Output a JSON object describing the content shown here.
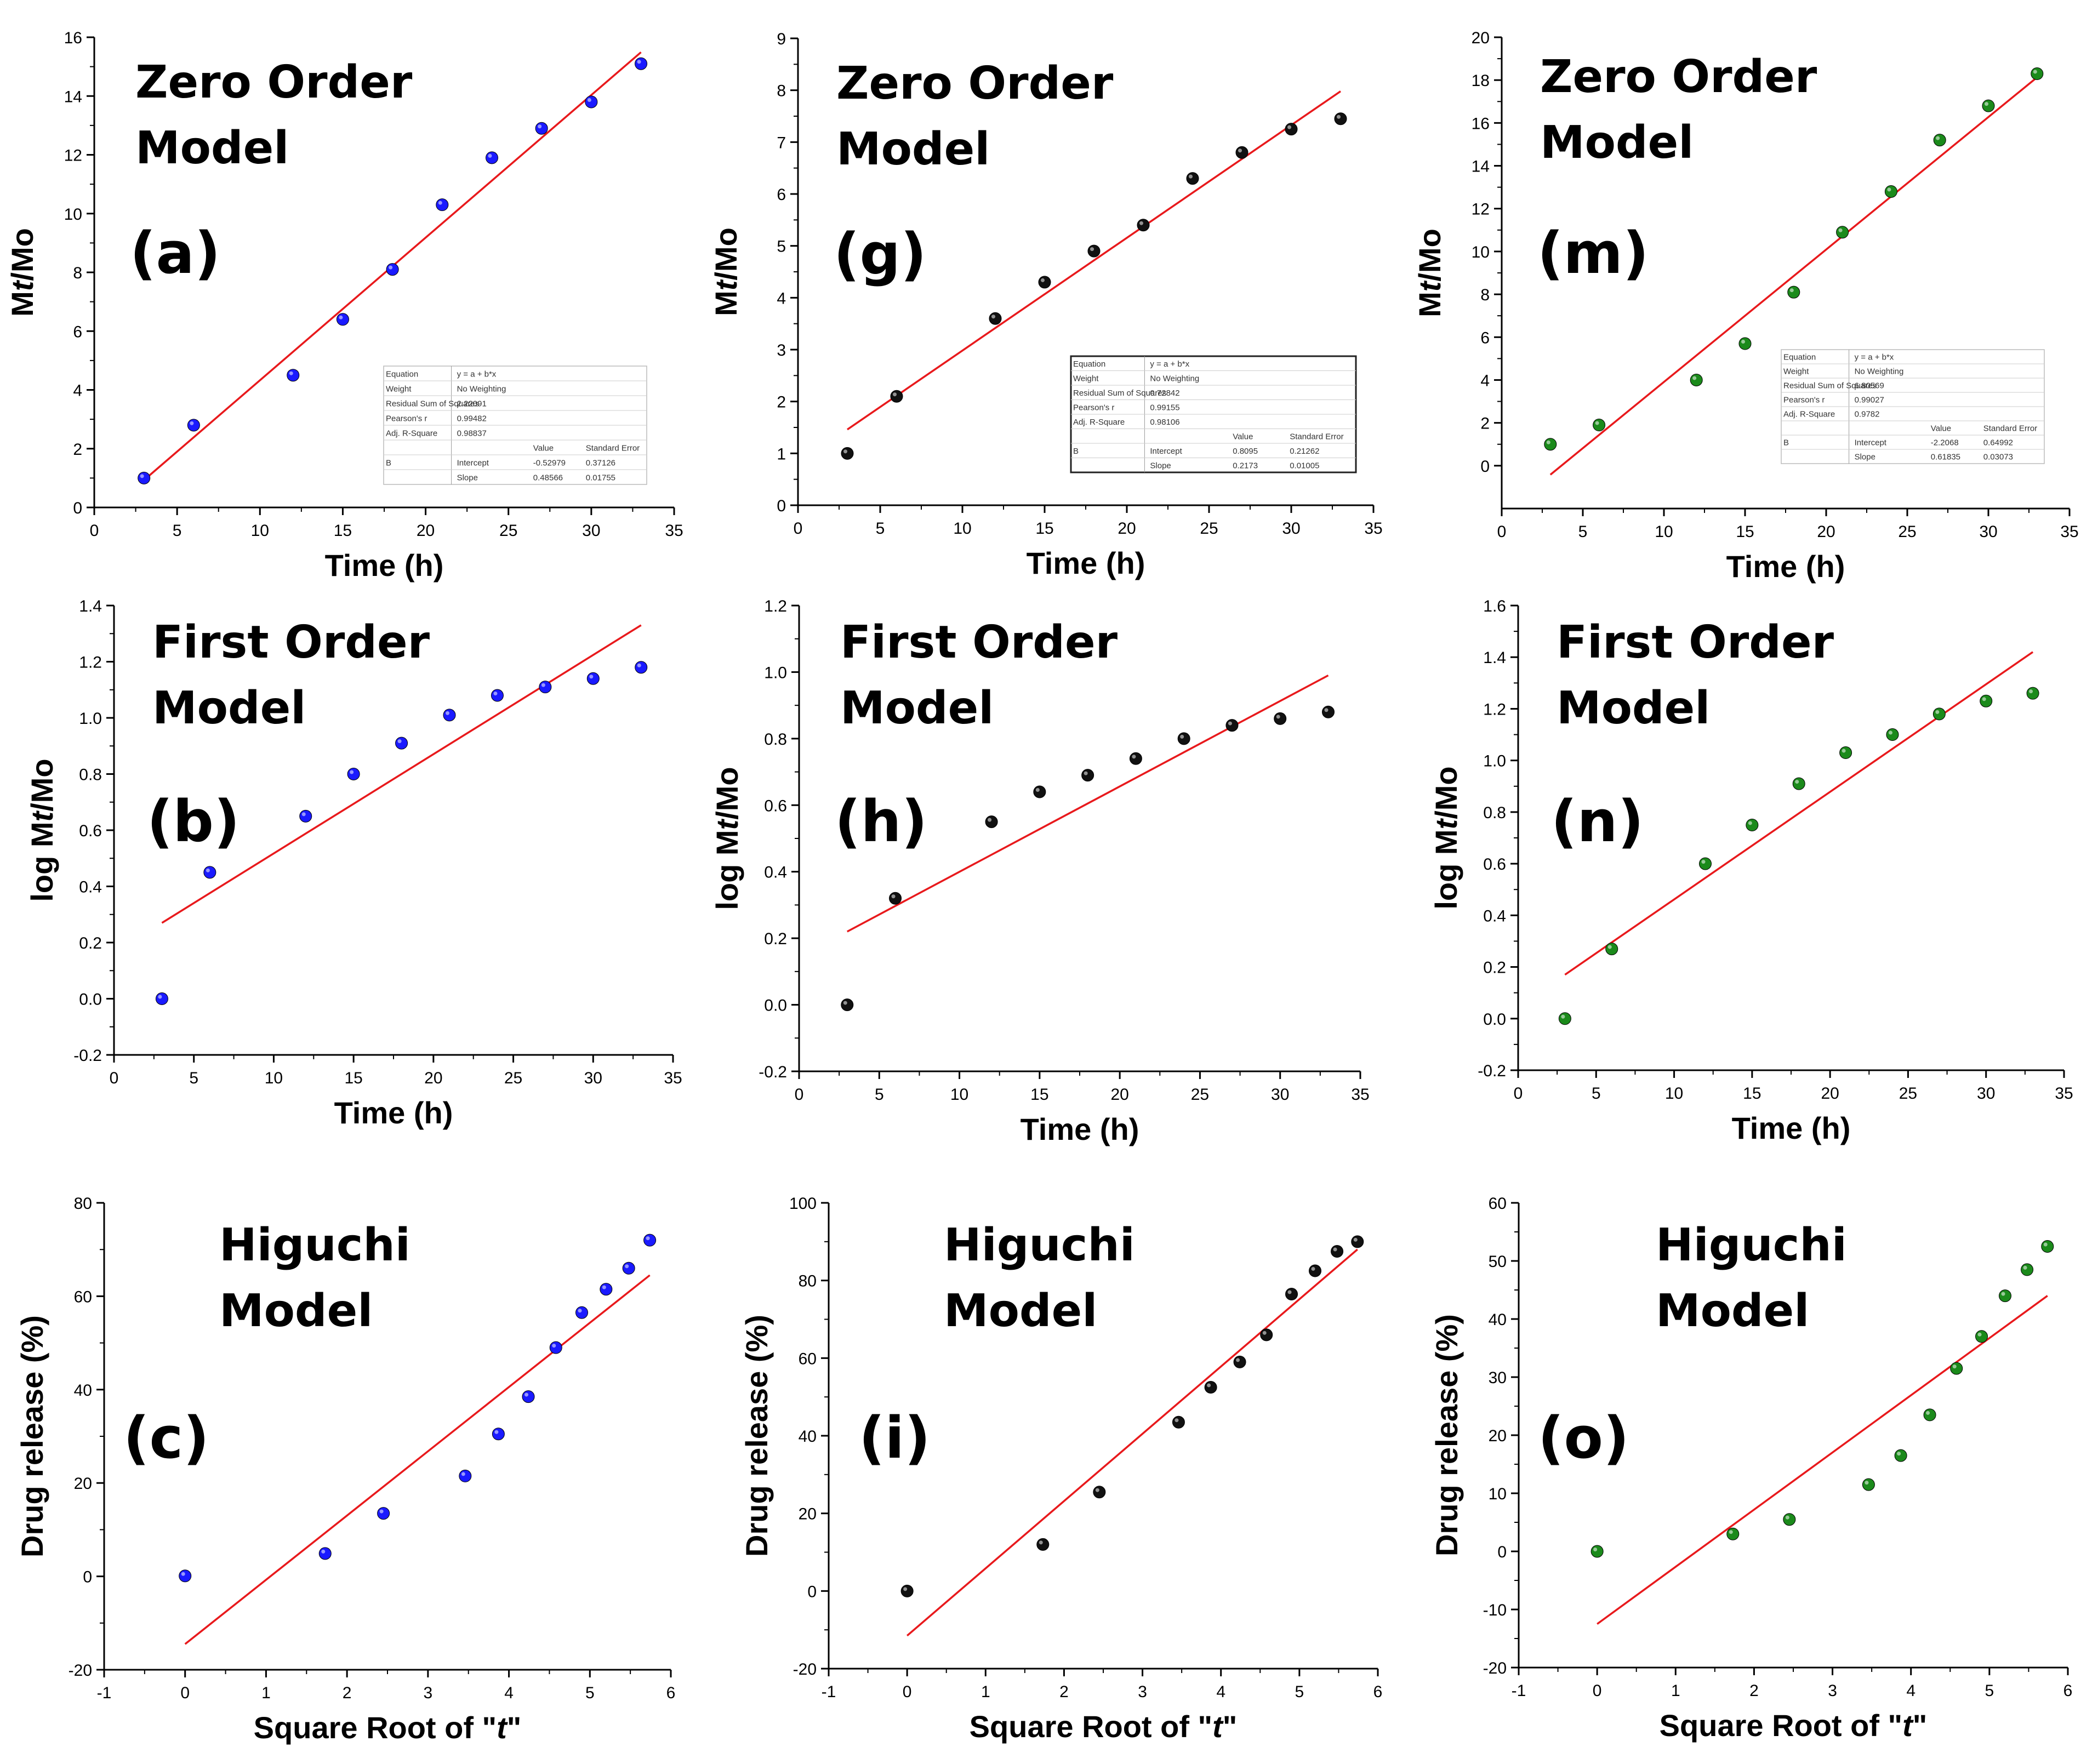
{
  "figure": {
    "colors": {
      "fit_line": "#e8191c",
      "axis": "#000000"
    }
  },
  "chart_data": [
    {
      "id": "a",
      "type": "scatter",
      "panel_label": "(a)",
      "title_lines": [
        "Zero Order",
        "Model"
      ],
      "xlabel": "Time (h)",
      "ylabel": "Mt/Mo",
      "ylabel_italic": "t",
      "xlim": [
        0,
        35
      ],
      "ylim": [
        0,
        16
      ],
      "xticks": [
        0,
        5,
        10,
        15,
        20,
        25,
        30,
        35
      ],
      "yticks": [
        0,
        2,
        4,
        6,
        8,
        10,
        12,
        14,
        16
      ],
      "marker_color": "#1a1aff",
      "series": [
        {
          "x": [
            3,
            6,
            12,
            15,
            18,
            21,
            24,
            27,
            30,
            33
          ],
          "y": [
            1.0,
            2.8,
            4.5,
            6.4,
            8.1,
            10.3,
            11.9,
            12.9,
            13.8,
            15.1
          ]
        }
      ],
      "fit": {
        "x": [
          3,
          33
        ],
        "y": [
          0.93,
          15.49
        ]
      },
      "stats_table": [
        [
          "Equation",
          "y = a + b*x",
          "",
          ""
        ],
        [
          "Weight",
          "No Weighting",
          "",
          ""
        ],
        [
          "Residual Sum of Squares",
          "2.22091",
          "",
          ""
        ],
        [
          "Pearson's r",
          "0.99482",
          "",
          ""
        ],
        [
          "Adj. R-Square",
          "0.98837",
          "",
          ""
        ],
        [
          "",
          "",
          "Value",
          "Standard Error"
        ],
        [
          "B",
          "Intercept",
          "-0.52979",
          "0.37126"
        ],
        [
          "",
          "Slope",
          "0.48566",
          "0.01755"
        ]
      ]
    },
    {
      "id": "b",
      "type": "scatter",
      "panel_label": "(b)",
      "title_lines": [
        "First Order",
        "Model"
      ],
      "xlabel": "Time (h)",
      "ylabel": "log Mt/Mo",
      "ylabel_italic": "t",
      "xlim": [
        0,
        35
      ],
      "ylim": [
        -0.2,
        1.4
      ],
      "xticks": [
        0,
        5,
        10,
        15,
        20,
        25,
        30,
        35
      ],
      "yticks": [
        -0.2,
        0.0,
        0.2,
        0.4,
        0.6,
        0.8,
        1.0,
        1.2,
        1.4
      ],
      "marker_color": "#1a1aff",
      "series": [
        {
          "x": [
            3,
            6,
            12,
            15,
            18,
            21,
            24,
            27,
            30,
            33
          ],
          "y": [
            0.0,
            0.45,
            0.65,
            0.8,
            0.91,
            1.01,
            1.08,
            1.11,
            1.14,
            1.18
          ]
        }
      ],
      "fit": {
        "x": [
          3,
          33
        ],
        "y": [
          0.27,
          1.33
        ]
      }
    },
    {
      "id": "c",
      "type": "scatter",
      "panel_label": "(c)",
      "title_lines": [
        "Higuchi",
        "Model"
      ],
      "xlabel": "Square Root of \"t\"",
      "xlabel_italic": "t",
      "ylabel": "Drug release (%)",
      "xlim": [
        -1,
        6
      ],
      "ylim": [
        -20,
        80
      ],
      "xticks": [
        -1,
        0,
        1,
        2,
        3,
        4,
        5,
        6
      ],
      "yticks": [
        -20,
        0,
        20,
        40,
        60,
        80
      ],
      "marker_color": "#1a1aff",
      "series": [
        {
          "x": [
            0,
            1.73,
            2.45,
            3.46,
            3.87,
            4.24,
            4.58,
            4.9,
            5.2,
            5.48,
            5.74
          ],
          "y": [
            0.1,
            4.9,
            13.5,
            21.5,
            30.5,
            38.5,
            49.0,
            56.5,
            61.5,
            66.0,
            72.0
          ]
        }
      ],
      "fit": {
        "x": [
          0,
          5.74
        ],
        "y": [
          -14.5,
          64.5
        ]
      }
    },
    {
      "id": "g",
      "type": "scatter",
      "panel_label": "(g)",
      "title_lines": [
        "Zero Order",
        "Model"
      ],
      "xlabel": "Time (h)",
      "ylabel": "Mt/Mo",
      "ylabel_italic": "t",
      "xlim": [
        0,
        35
      ],
      "ylim": [
        0,
        9
      ],
      "xticks": [
        0,
        5,
        10,
        15,
        20,
        25,
        30,
        35
      ],
      "yticks": [
        0,
        1,
        2,
        3,
        4,
        5,
        6,
        7,
        8,
        9
      ],
      "marker_color": "#111111",
      "series": [
        {
          "x": [
            3,
            6,
            12,
            15,
            18,
            21,
            24,
            27,
            30,
            33
          ],
          "y": [
            1.0,
            2.1,
            3.6,
            4.3,
            4.9,
            5.4,
            6.3,
            6.8,
            7.25,
            7.45
          ]
        }
      ],
      "fit": {
        "x": [
          3,
          33
        ],
        "y": [
          1.46,
          7.98
        ]
      },
      "stats_table": [
        [
          "Equation",
          "y = a + b*x",
          "",
          ""
        ],
        [
          "Weight",
          "No Weighting",
          "",
          ""
        ],
        [
          "Residual Sum of Squares",
          "0.72842",
          "",
          ""
        ],
        [
          "Pearson's r",
          "0.99155",
          "",
          ""
        ],
        [
          "Adj. R-Square",
          "0.98106",
          "",
          ""
        ],
        [
          "",
          "",
          "Value",
          "Standard Error"
        ],
        [
          "B",
          "Intercept",
          "0.8095",
          "0.21262"
        ],
        [
          "",
          "Slope",
          "0.2173",
          "0.01005"
        ]
      ]
    },
    {
      "id": "h",
      "type": "scatter",
      "panel_label": "(h)",
      "title_lines": [
        "First Order",
        "Model"
      ],
      "xlabel": "Time (h)",
      "ylabel": "log Mt/Mo",
      "ylabel_italic": "t",
      "xlim": [
        0,
        35
      ],
      "ylim": [
        -0.2,
        1.2
      ],
      "xticks": [
        0,
        5,
        10,
        15,
        20,
        25,
        30,
        35
      ],
      "yticks": [
        -0.2,
        0.0,
        0.2,
        0.4,
        0.6,
        0.8,
        1.0,
        1.2
      ],
      "marker_color": "#111111",
      "series": [
        {
          "x": [
            3,
            6,
            12,
            15,
            18,
            21,
            24,
            27,
            30,
            33
          ],
          "y": [
            0.0,
            0.32,
            0.55,
            0.64,
            0.69,
            0.74,
            0.8,
            0.84,
            0.86,
            0.88
          ]
        }
      ],
      "fit": {
        "x": [
          3,
          33
        ],
        "y": [
          0.22,
          0.99
        ]
      }
    },
    {
      "id": "i",
      "type": "scatter",
      "panel_label": "(i)",
      "title_lines": [
        "Higuchi",
        "Model"
      ],
      "xlabel": "Square Root of \"t\"",
      "xlabel_italic": "t",
      "ylabel": "Drug release (%)",
      "xlim": [
        -1,
        6
      ],
      "ylim": [
        -20,
        100
      ],
      "xticks": [
        -1,
        0,
        1,
        2,
        3,
        4,
        5,
        6
      ],
      "yticks": [
        -20,
        0,
        20,
        40,
        60,
        80,
        100
      ],
      "marker_color": "#111111",
      "series": [
        {
          "x": [
            0,
            1.73,
            2.45,
            3.46,
            3.87,
            4.24,
            4.58,
            4.9,
            5.2,
            5.48,
            5.74
          ],
          "y": [
            0.0,
            12.0,
            25.5,
            43.5,
            52.5,
            59.0,
            66.0,
            76.5,
            82.5,
            87.5,
            90.0
          ]
        }
      ],
      "fit": {
        "x": [
          0,
          5.74
        ],
        "y": [
          -11.5,
          88.0
        ]
      }
    },
    {
      "id": "m",
      "type": "scatter",
      "panel_label": "(m)",
      "title_lines": [
        "Zero Order",
        "Model"
      ],
      "xlabel": "Time (h)",
      "ylabel": "Mt/Mo",
      "ylabel_italic": "t",
      "xlim": [
        0,
        35
      ],
      "ylim": [
        -2,
        20
      ],
      "xticks": [
        0,
        5,
        10,
        15,
        20,
        25,
        30,
        35
      ],
      "yticks": [
        0,
        2,
        4,
        6,
        8,
        10,
        12,
        14,
        16,
        18,
        20
      ],
      "marker_color": "#1b8a1b",
      "series": [
        {
          "x": [
            3,
            6,
            12,
            15,
            18,
            21,
            24,
            27,
            30,
            33
          ],
          "y": [
            1.0,
            1.9,
            4.0,
            5.7,
            8.1,
            10.9,
            12.8,
            15.2,
            16.8,
            18.3
          ]
        }
      ],
      "fit": {
        "x": [
          3,
          33
        ],
        "y": [
          -0.42,
          18.13
        ]
      },
      "stats_table": [
        [
          "Equation",
          "y = a + b*x",
          "",
          ""
        ],
        [
          "Weight",
          "No Weighting",
          "",
          ""
        ],
        [
          "Residual Sum of Squares",
          "6.80569",
          "",
          ""
        ],
        [
          "Pearson's r",
          "0.99027",
          "",
          ""
        ],
        [
          "Adj. R-Square",
          "0.9782",
          "",
          ""
        ],
        [
          "",
          "",
          "Value",
          "Standard Error"
        ],
        [
          "B",
          "Intercept",
          "-2.2068",
          "0.64992"
        ],
        [
          "",
          "Slope",
          "0.61835",
          "0.03073"
        ]
      ]
    },
    {
      "id": "n",
      "type": "scatter",
      "panel_label": "(n)",
      "title_lines": [
        "First Order",
        "Model"
      ],
      "xlabel": "Time (h)",
      "ylabel": "log Mt/Mo",
      "ylabel_italic": "t",
      "xlim": [
        0,
        35
      ],
      "ylim": [
        -0.2,
        1.6
      ],
      "xticks": [
        0,
        5,
        10,
        15,
        20,
        25,
        30,
        35
      ],
      "yticks": [
        -0.2,
        0.0,
        0.2,
        0.4,
        0.6,
        0.8,
        1.0,
        1.2,
        1.4,
        1.6
      ],
      "marker_color": "#1b8a1b",
      "series": [
        {
          "x": [
            3,
            6,
            12,
            15,
            18,
            21,
            24,
            27,
            30,
            33
          ],
          "y": [
            0.0,
            0.27,
            0.6,
            0.75,
            0.91,
            1.03,
            1.1,
            1.18,
            1.23,
            1.26
          ]
        }
      ],
      "fit": {
        "x": [
          3,
          33
        ],
        "y": [
          0.17,
          1.42
        ]
      }
    },
    {
      "id": "o",
      "type": "scatter",
      "panel_label": "(o)",
      "title_lines": [
        "Higuchi",
        "Model"
      ],
      "xlabel": "Square Root of \"t\"",
      "xlabel_italic": "t",
      "ylabel": "Drug release (%)",
      "xlim": [
        -1,
        6
      ],
      "ylim": [
        -20,
        60
      ],
      "xticks": [
        -1,
        0,
        1,
        2,
        3,
        4,
        5,
        6
      ],
      "yticks": [
        -20,
        -10,
        0,
        10,
        20,
        30,
        40,
        50,
        60
      ],
      "marker_color": "#1b8a1b",
      "series": [
        {
          "x": [
            0,
            1.73,
            2.45,
            3.46,
            3.87,
            4.24,
            4.58,
            4.9,
            5.2,
            5.48,
            5.74
          ],
          "y": [
            0.0,
            3.0,
            5.5,
            11.5,
            16.5,
            23.5,
            31.5,
            37.0,
            44.0,
            48.5,
            52.5
          ]
        }
      ],
      "fit": {
        "x": [
          0,
          5.74
        ],
        "y": [
          -12.5,
          44.0
        ]
      }
    }
  ]
}
